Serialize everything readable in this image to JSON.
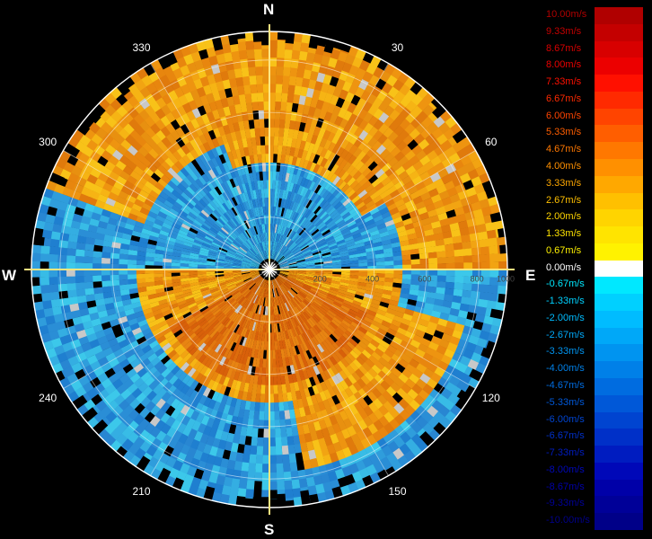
{
  "compass": {
    "north": "N",
    "east": "E",
    "south": "S",
    "west": "W"
  },
  "azimuth_labels": [
    "30",
    "60",
    "120",
    "150",
    "210",
    "240",
    "300",
    "330"
  ],
  "range_labels": [
    "200",
    "400",
    "600",
    "800",
    "1000"
  ],
  "legend": {
    "items": [
      {
        "label": "10.00m/s",
        "color": "#b00000"
      },
      {
        "label": "9.33m/s",
        "color": "#c40000"
      },
      {
        "label": "8.67m/s",
        "color": "#d80000"
      },
      {
        "label": "8.00m/s",
        "color": "#ec0000"
      },
      {
        "label": "7.33m/s",
        "color": "#ff1000"
      },
      {
        "label": "6.67m/s",
        "color": "#ff2a00"
      },
      {
        "label": "6.00m/s",
        "color": "#ff4400"
      },
      {
        "label": "5.33m/s",
        "color": "#ff5e00"
      },
      {
        "label": "4.67m/s",
        "color": "#ff7800"
      },
      {
        "label": "4.00m/s",
        "color": "#ff9000"
      },
      {
        "label": "3.33m/s",
        "color": "#ffa800"
      },
      {
        "label": "2.67m/s",
        "color": "#ffc000"
      },
      {
        "label": "2.00m/s",
        "color": "#ffd400"
      },
      {
        "label": "1.33m/s",
        "color": "#ffe400"
      },
      {
        "label": "0.67m/s",
        "color": "#fff200"
      },
      {
        "label": "0.00m/s",
        "color": "#ffffff"
      },
      {
        "label": "-0.67m/s",
        "color": "#00e8ff"
      },
      {
        "label": "-1.33m/s",
        "color": "#00d0ff"
      },
      {
        "label": "-2.00m/s",
        "color": "#00bcff"
      },
      {
        "label": "-2.67m/s",
        "color": "#00a8f8"
      },
      {
        "label": "-3.33m/s",
        "color": "#0094f0"
      },
      {
        "label": "-4.00m/s",
        "color": "#0080e8"
      },
      {
        "label": "-4.67m/s",
        "color": "#006ce0"
      },
      {
        "label": "-5.33m/s",
        "color": "#0058d8"
      },
      {
        "label": "-6.00m/s",
        "color": "#0044d0"
      },
      {
        "label": "-6.67m/s",
        "color": "#0030c8"
      },
      {
        "label": "-7.33m/s",
        "color": "#001cc0"
      },
      {
        "label": "-8.00m/s",
        "color": "#0008b8"
      },
      {
        "label": "-8.67m/s",
        "color": "#0000a8"
      },
      {
        "label": "-9.33m/s",
        "color": "#000098"
      },
      {
        "label": "-10.00m/s",
        "color": "#000088"
      }
    ]
  },
  "colors": {
    "background": "#000000",
    "warm_core": "#e8800c",
    "warm_ring": "#f0b014",
    "cold_inner": "#2a8ed6",
    "cold_outer": "#30b6e6",
    "axis_line": "#ffe680",
    "clutter": "#c8c8c8"
  }
}
